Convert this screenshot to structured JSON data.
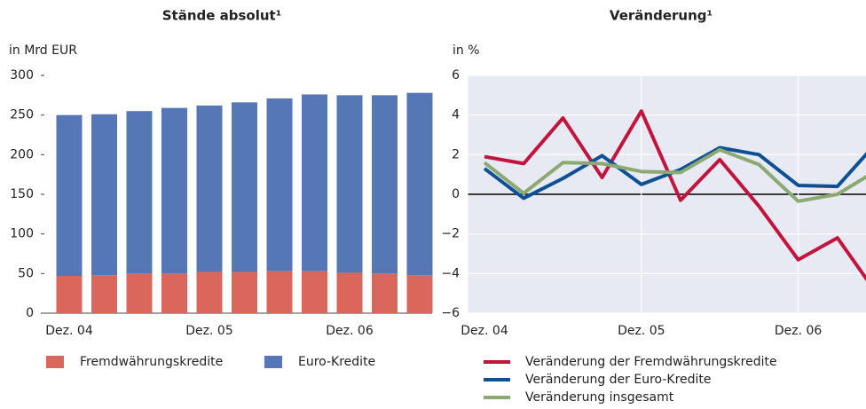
{
  "chart_data": [
    {
      "type": "bar",
      "stacked": true,
      "title": "Stände absolut¹",
      "y_axis_label": "in Mrd EUR",
      "categories": [
        "Dez. 04",
        null,
        null,
        null,
        "Dez. 05",
        null,
        null,
        null,
        "Dez. 06",
        null,
        null
      ],
      "series": [
        {
          "name": "Fremdwährungskredite",
          "color": "#d9675c",
          "values": [
            47,
            48,
            50,
            50,
            52,
            52,
            53,
            53,
            51,
            50,
            48
          ]
        },
        {
          "name": "Euro-Kredite",
          "color": "#5577b6",
          "values": [
            203,
            203,
            205,
            209,
            210,
            214,
            218,
            223,
            224,
            225,
            230
          ]
        }
      ],
      "ylim": [
        0,
        300
      ],
      "yticks": [
        0,
        50,
        100,
        150,
        200,
        250,
        300
      ]
    },
    {
      "type": "line",
      "title": "Veränderung¹",
      "y_axis_label": "in %",
      "categories": [
        "Dez. 04",
        null,
        null,
        null,
        "Dez. 05",
        null,
        null,
        null,
        "Dez. 06",
        null,
        null
      ],
      "series": [
        {
          "name": "Veränderung der Fremdwährungskredite",
          "color": "#c2143d",
          "values": [
            1.9,
            1.55,
            3.85,
            0.85,
            4.2,
            -0.3,
            1.75,
            -0.6,
            -3.3,
            -2.2,
            -5.0
          ]
        },
        {
          "name": "Veränderung der Euro-Kredite",
          "color": "#0d5096",
          "values": [
            1.3,
            -0.2,
            0.8,
            1.95,
            0.5,
            1.25,
            2.35,
            2.0,
            0.45,
            0.4,
            2.6
          ]
        },
        {
          "name": "Veränderung insgesamt",
          "color": "#8ca971",
          "values": [
            1.6,
            0.05,
            1.6,
            1.55,
            1.15,
            1.1,
            2.25,
            1.5,
            -0.35,
            0.0,
            1.2
          ]
        }
      ],
      "ylim": [
        -6,
        6
      ],
      "yticks": [
        {
          "value": -6,
          "label": "−6"
        },
        {
          "value": -4,
          "label": "−4"
        },
        {
          "value": -2,
          "label": "−2"
        },
        0,
        2,
        4,
        6
      ],
      "grid": true
    }
  ]
}
